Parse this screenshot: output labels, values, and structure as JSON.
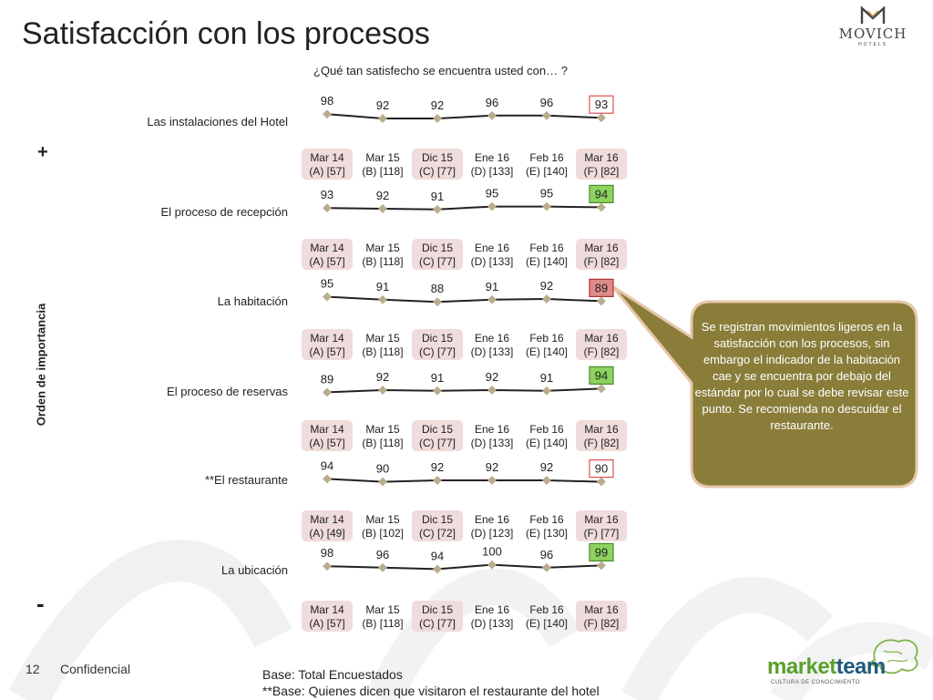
{
  "page": {
    "title": "Satisfacción con los procesos",
    "question": "¿Qué tan satisfecho se encuentra usted con… ?",
    "vertical_axis_label": "Orden de importancia",
    "top_marker": "+",
    "bottom_marker": "-",
    "page_number": "12",
    "confidential": "Confidencial",
    "base_note_1": "Base: Total Encuestados",
    "base_note_2": "**Base: Quienes dicen que visitaron el restaurante del hotel",
    "callout": "Se registran movimientos ligeros en la satisfacción con los procesos, sin embargo el indicador de la habitación cae y se encuentra por debajo del estándar por lo cual se debe revisar este punto. Se recomienda no descuidar el restaurante.",
    "logo": {
      "name": "MOVICH",
      "sub": "HOTELS"
    },
    "marketteam": {
      "part1": "market",
      "part2": "team",
      "tagline": "CULTURA DE CONOCIMIENTO"
    }
  },
  "colors": {
    "marker": "#b9ad8c",
    "line": "#222222",
    "period_box": "#f0dcdc",
    "good": "#8dd35f",
    "bad": "#e08a8a",
    "neutral_border": "#d9534f",
    "callout_fill": "#8a7d3a",
    "callout_border": "#e6c7a8"
  },
  "chart_data": {
    "type": "line",
    "periods": [
      "Mar 14",
      "Mar 15",
      "Dic 15",
      "Ene 16",
      "Feb 16",
      "Mar 16"
    ],
    "rows": [
      {
        "name": "Las instalaciones del Hotel",
        "values": [
          98,
          92,
          92,
          96,
          96,
          93
        ],
        "last_status": "neutral",
        "bases": [
          "(A) [57]",
          "(B) [118]",
          "(C) [77]",
          "(D) [133]",
          "(E) [140]",
          "(F) [82]"
        ]
      },
      {
        "name": "El proceso de recepción",
        "values": [
          93,
          92,
          91,
          95,
          95,
          94
        ],
        "last_status": "good",
        "bases": [
          "(A) [57]",
          "(B) [118]",
          "(C) [77]",
          "(D) [133]",
          "(E) [140]",
          "(F) [82]"
        ]
      },
      {
        "name": "La habitación",
        "values": [
          95,
          91,
          88,
          91,
          92,
          89
        ],
        "last_status": "bad",
        "bases": [
          "(A) [57]",
          "(B) [118]",
          "(C) [77]",
          "(D) [133]",
          "(E) [140]",
          "(F) [82]"
        ]
      },
      {
        "name": "El proceso de reservas",
        "values": [
          89,
          92,
          91,
          92,
          91,
          94
        ],
        "last_status": "good",
        "bases": [
          "(A) [57]",
          "(B) [118]",
          "(C) [77]",
          "(D) [133]",
          "(E) [140]",
          "(F) [82]"
        ]
      },
      {
        "name": "**El restaurante",
        "values": [
          94,
          90,
          92,
          92,
          92,
          90
        ],
        "last_status": "neutral",
        "bases": [
          "(A) [49]",
          "(B) [102]",
          "(C) [72]",
          "(D) [123]",
          "(E) [130]",
          "(F) [77]"
        ]
      },
      {
        "name": "La ubicación",
        "values": [
          98,
          96,
          94,
          100,
          96,
          99
        ],
        "last_status": "good",
        "bases": [
          "(A) [57]",
          "(B) [118]",
          "(C) [77]",
          "(D) [133]",
          "(E) [140]",
          "(F) [82]"
        ]
      }
    ]
  }
}
